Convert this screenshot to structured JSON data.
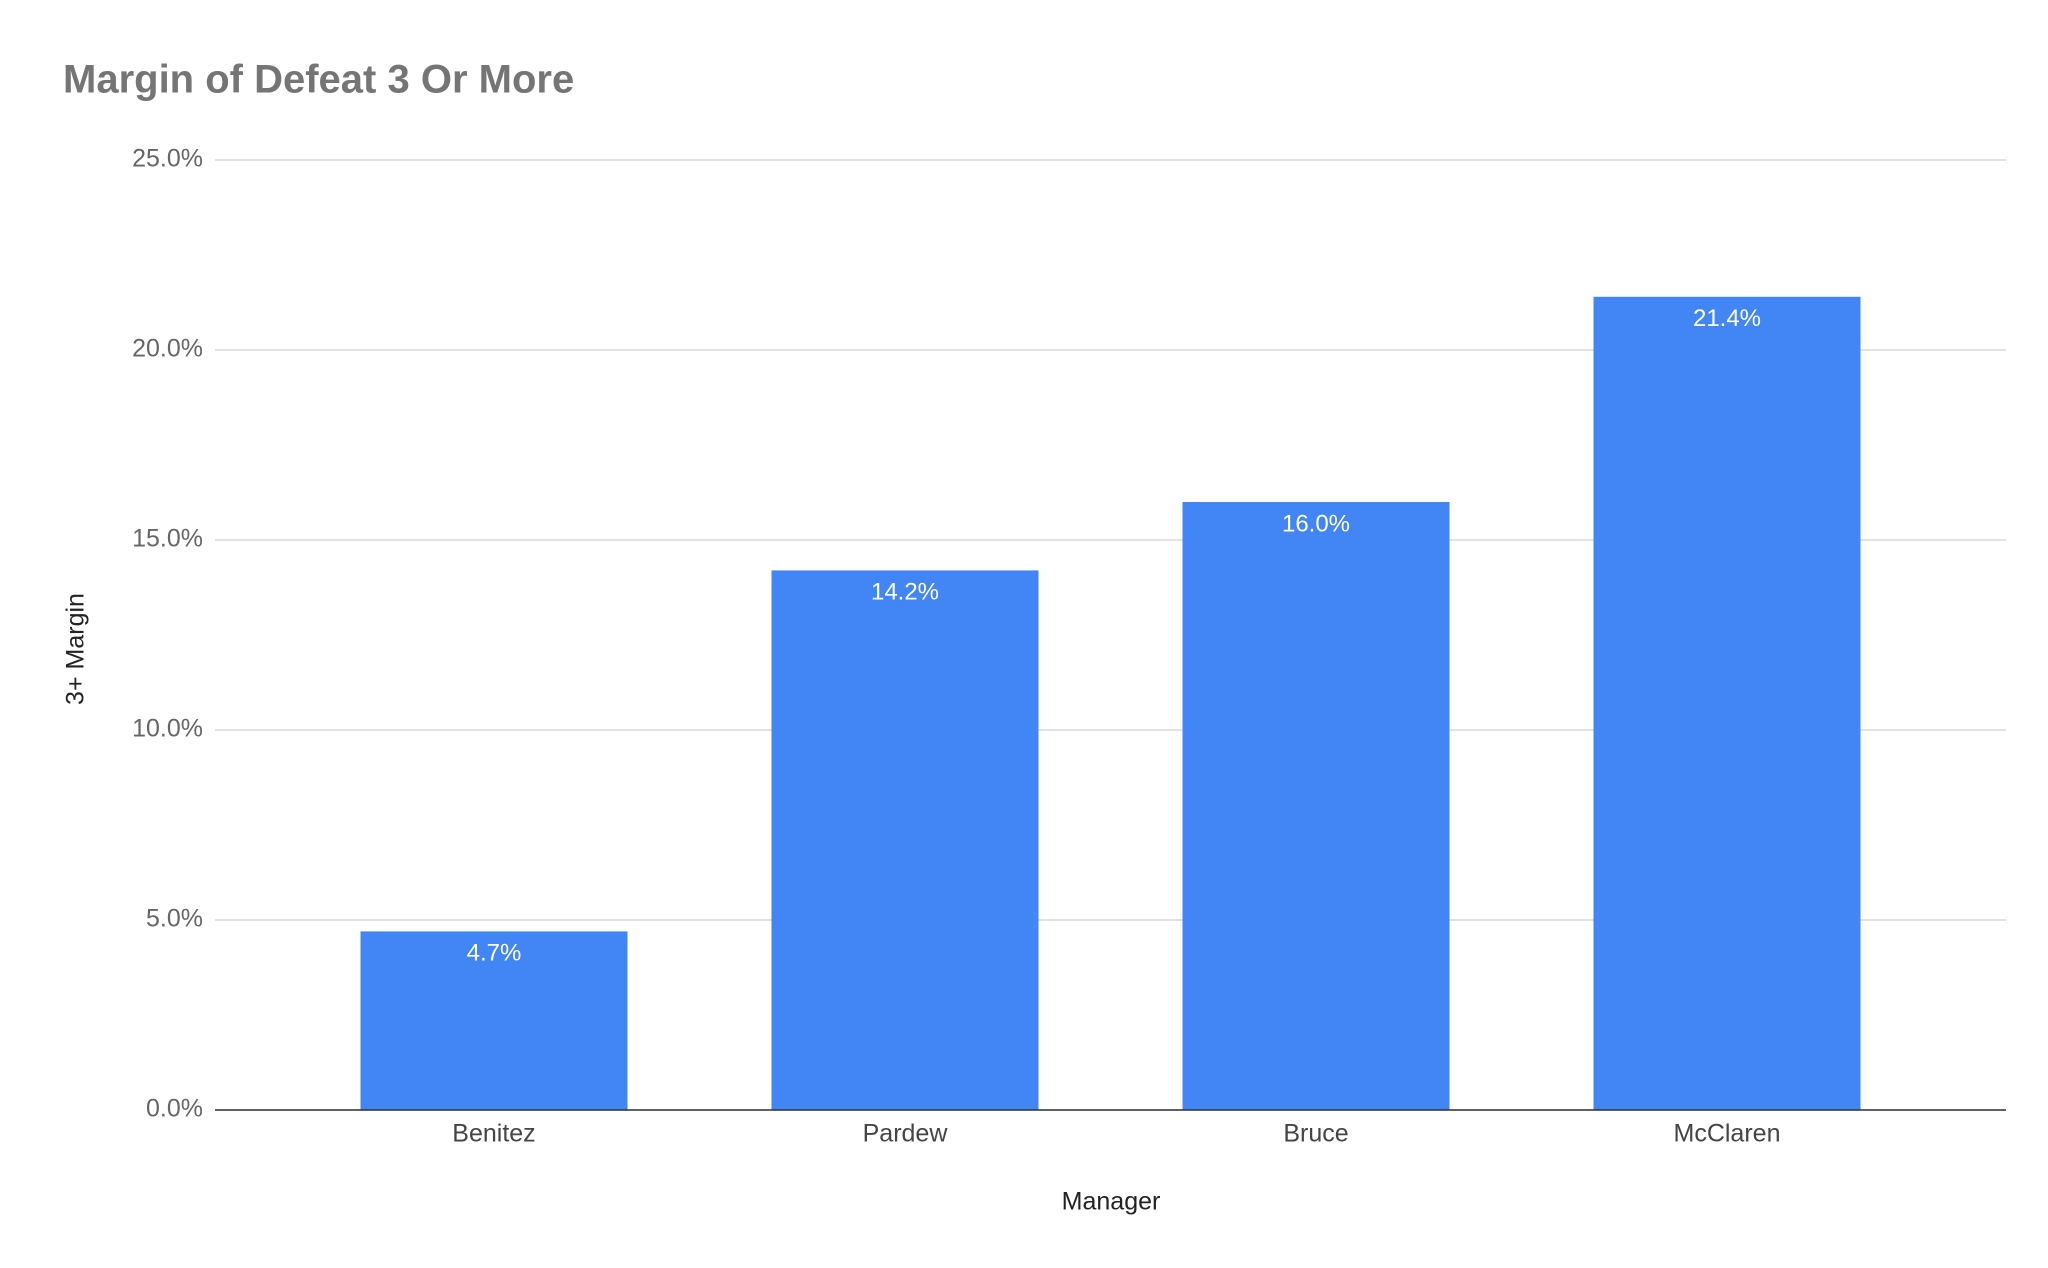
{
  "chart_data": {
    "type": "bar",
    "title": "Margin of Defeat 3 Or More",
    "x_label": "Manager",
    "y_label": "3+ Margin",
    "categories": [
      "Benitez",
      "Pardew",
      "Bruce",
      "McClaren"
    ],
    "values": [
      4.7,
      14.2,
      16.0,
      21.4
    ],
    "value_labels": [
      "4.7%",
      "14.2%",
      "16.0%",
      "21.4%"
    ],
    "color": "#4285f4",
    "ylim": [
      0,
      25
    ],
    "yticks": [
      {
        "value": 0,
        "label": "0.0%"
      },
      {
        "value": 5,
        "label": "5.0%"
      },
      {
        "value": 10,
        "label": "10.0%"
      },
      {
        "value": 15,
        "label": "15.0%"
      },
      {
        "value": 20,
        "label": "20.0%"
      },
      {
        "value": 25,
        "label": "25.0%"
      }
    ],
    "grid": true
  }
}
